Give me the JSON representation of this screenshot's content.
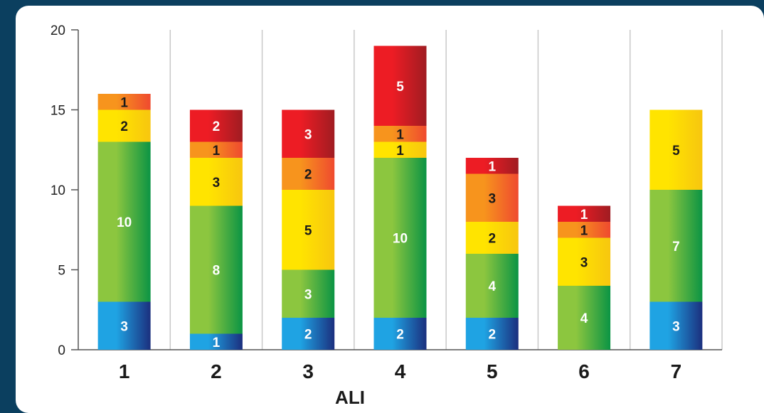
{
  "chart_data": {
    "type": "bar",
    "stacked": true,
    "title": "",
    "xlabel": "ALI",
    "ylabel": "",
    "ylim": [
      0,
      20
    ],
    "yticks": [
      "0",
      "5",
      "10",
      "15",
      "20"
    ],
    "categories": [
      "1",
      "2",
      "3",
      "4",
      "5",
      "6",
      "7"
    ],
    "series": [
      {
        "key": "blue",
        "values": [
          3,
          1,
          2,
          2,
          2,
          0,
          3
        ],
        "color_light": "#1fa3e3",
        "color_dark": "#1b2f7e",
        "label_color": "#ffffff"
      },
      {
        "key": "green",
        "values": [
          10,
          8,
          3,
          10,
          4,
          4,
          7
        ],
        "color_light": "#8cc63f",
        "color_dark": "#0b9444",
        "label_color": "#ffffff"
      },
      {
        "key": "yellow",
        "values": [
          2,
          3,
          5,
          1,
          2,
          3,
          5
        ],
        "color_light": "#ffe400",
        "color_dark": "#f7c60f",
        "label_color": "#1a1a1a"
      },
      {
        "key": "orange",
        "values": [
          1,
          1,
          2,
          1,
          3,
          1,
          0
        ],
        "color_light": "#f7941d",
        "color_dark": "#ef4a2f",
        "label_color": "#1a1a1a"
      },
      {
        "key": "red",
        "values": [
          0,
          2,
          3,
          5,
          1,
          1,
          0
        ],
        "color_light": "#ed1c24",
        "color_dark": "#a01c22",
        "label_color": "#ffffff"
      }
    ],
    "grid": "vertical separators",
    "legend": "none"
  }
}
